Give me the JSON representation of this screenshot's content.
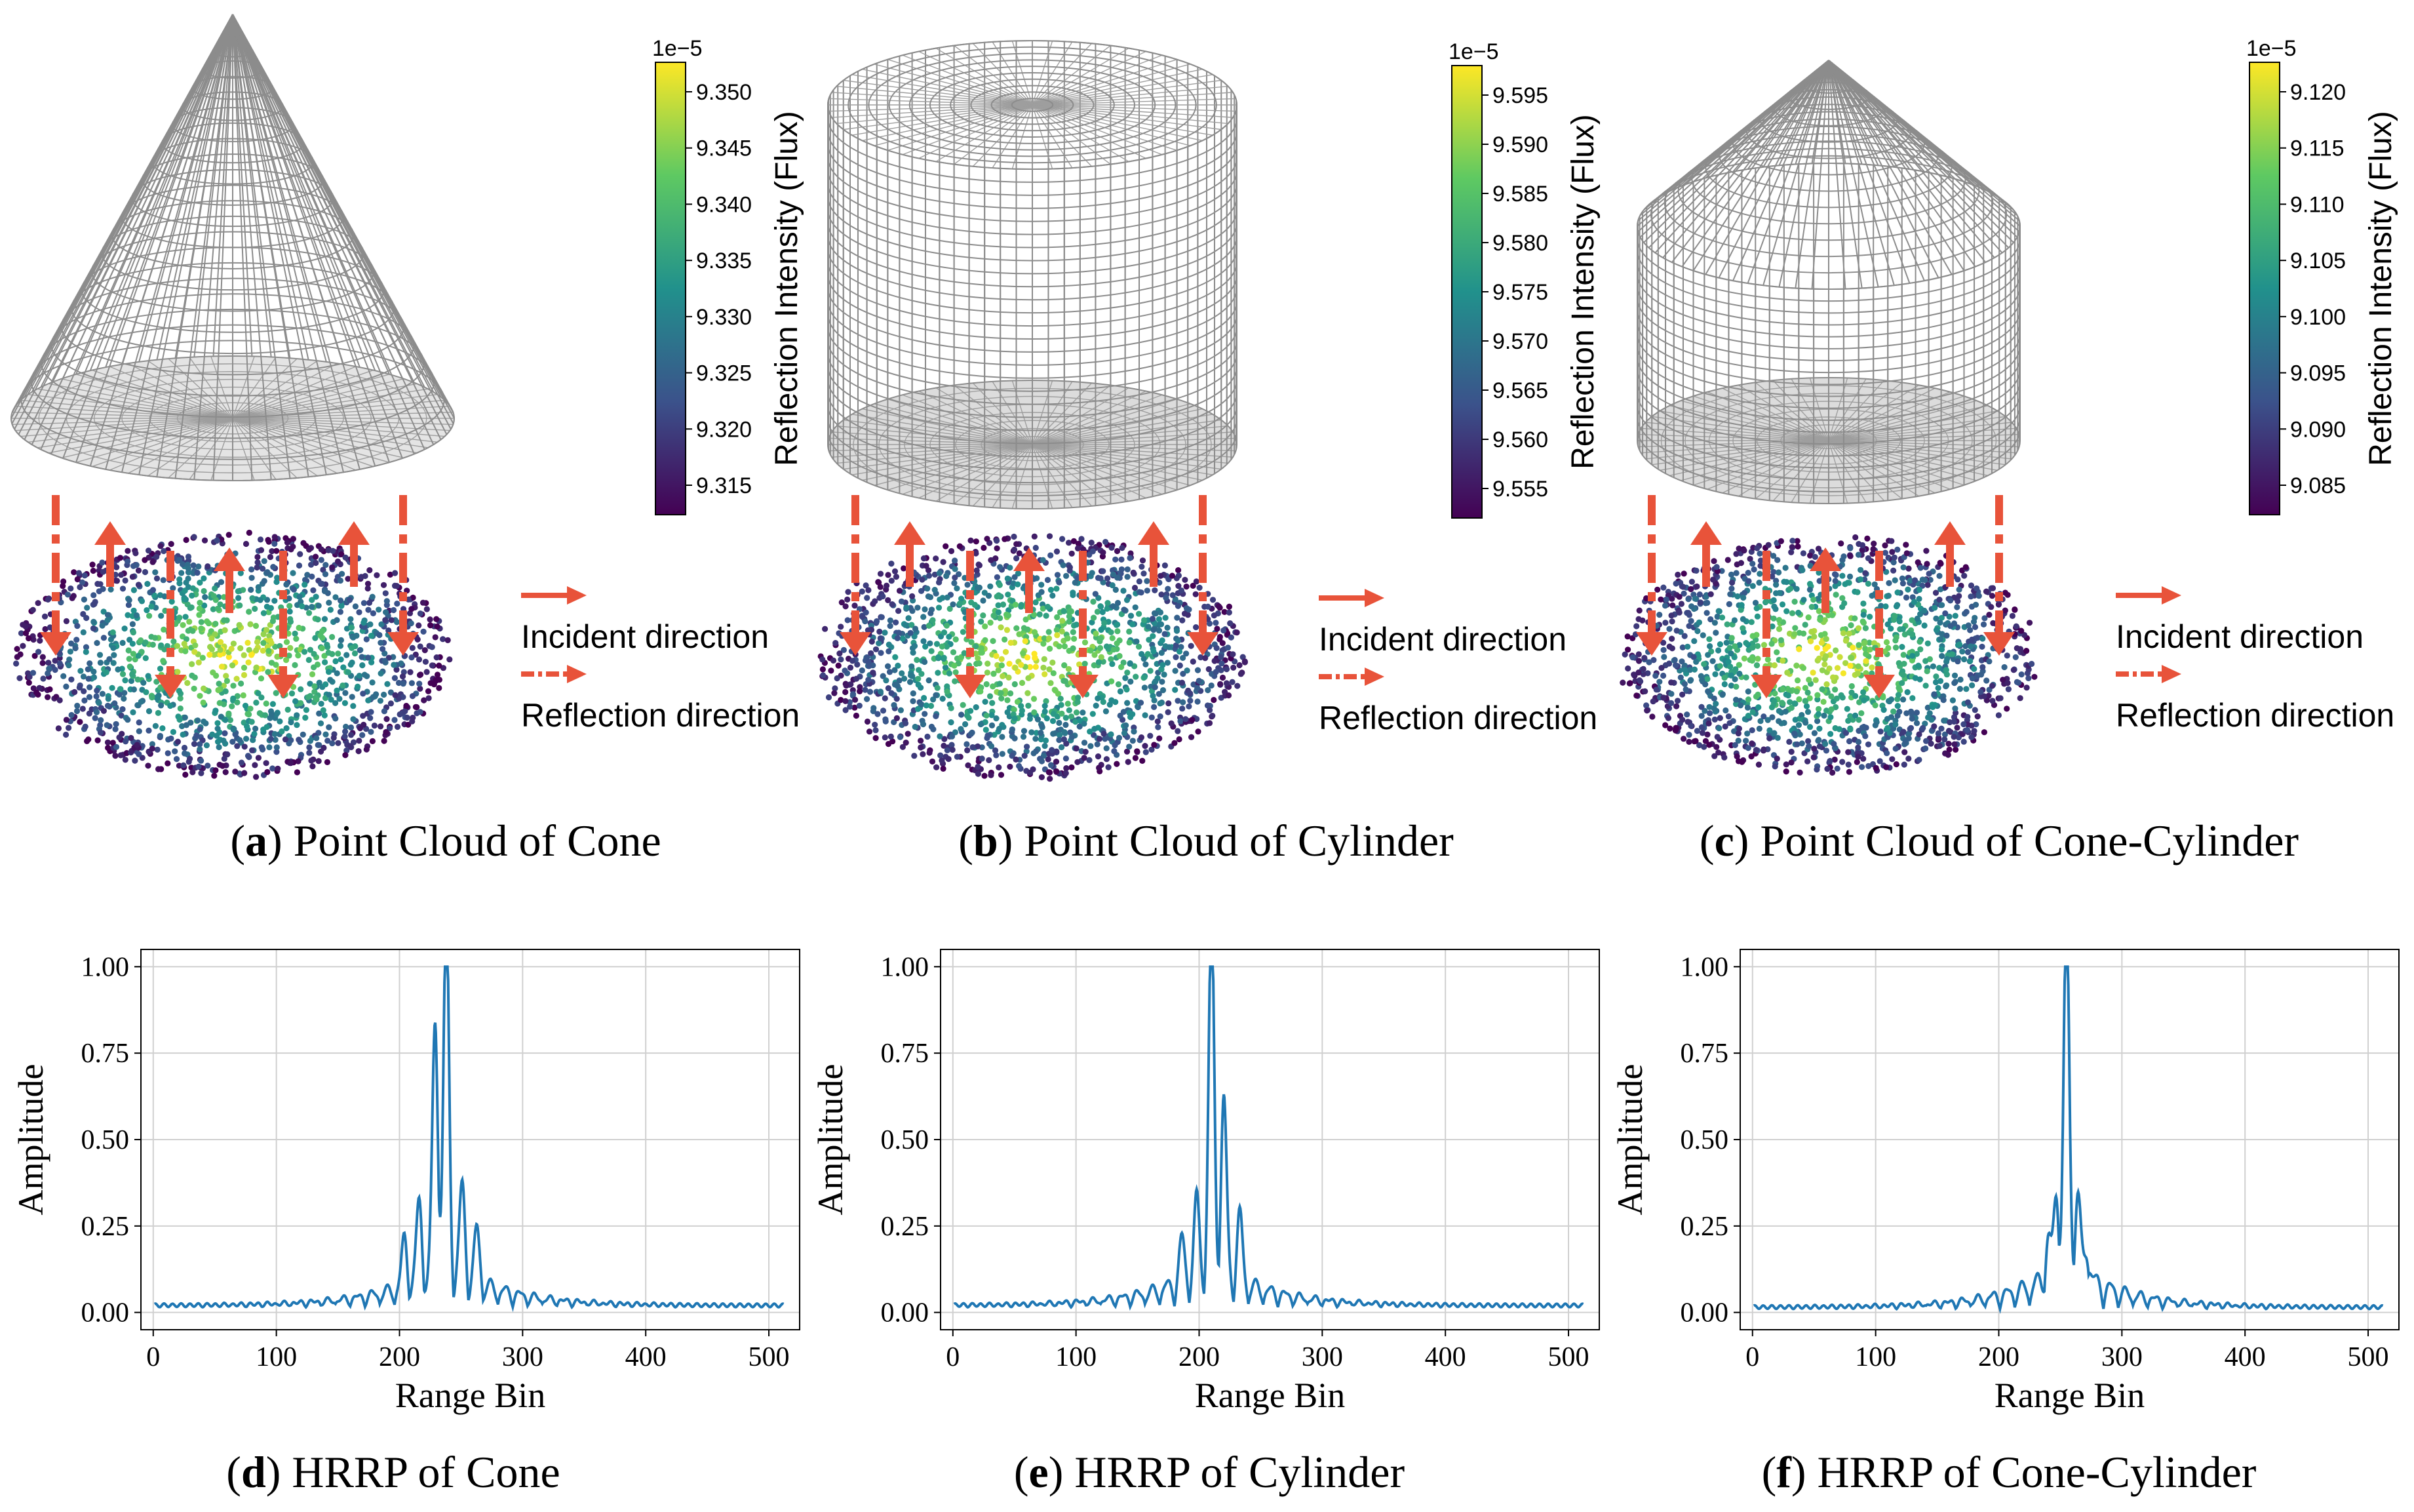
{
  "panels_top": [
    {
      "letter": "a",
      "caption": " Point Cloud of Cone",
      "shape": "cone",
      "colorbar": {
        "exponent": "1e−5",
        "ticks": [
          "9.350",
          "9.345",
          "9.340",
          "9.335",
          "9.330",
          "9.325",
          "9.320",
          "9.315"
        ],
        "label": "Reflection Intensity (Flux)"
      },
      "legend": {
        "incident": "Incident direction",
        "reflection": "Reflection direction"
      }
    },
    {
      "letter": "b",
      "caption": " Point Cloud of Cylinder",
      "shape": "cylinder",
      "colorbar": {
        "exponent": "1e−5",
        "ticks": [
          "9.595",
          "9.590",
          "9.585",
          "9.580",
          "9.575",
          "9.570",
          "9.565",
          "9.560",
          "9.555"
        ],
        "label": "Reflection Intensity (Flux)"
      },
      "legend": {
        "incident": "Incident direction",
        "reflection": "Reflection direction"
      }
    },
    {
      "letter": "c",
      "caption": " Point Cloud of Cone-Cylinder",
      "shape": "cone-cylinder",
      "colorbar": {
        "exponent": "1e−5",
        "ticks": [
          "9.120",
          "9.115",
          "9.110",
          "9.105",
          "9.100",
          "9.095",
          "9.090",
          "9.085"
        ],
        "label": "Reflection Intensity (Flux)"
      },
      "legend": {
        "incident": "Incident direction",
        "reflection": "Reflection direction"
      }
    }
  ],
  "colors": {
    "accent_arrow": "#e8533a",
    "line": "#1f77b4",
    "wireframe": "#8c8c8c",
    "viridis": [
      "#440154",
      "#3b528b",
      "#21918c",
      "#5ec962",
      "#fde725"
    ]
  },
  "chart_data": [
    {
      "type": "line",
      "letter": "d",
      "caption": " HRRP of Cone",
      "xlabel": "Range Bin",
      "ylabel": "Amplitude",
      "xlim": [
        -10,
        525
      ],
      "ylim": [
        -0.05,
        1.05
      ],
      "xticks": [
        0,
        100,
        200,
        300,
        400,
        500
      ],
      "yticks": [
        "0.00",
        "0.25",
        "0.50",
        "0.75",
        "1.00"
      ],
      "grid": true,
      "x_range": [
        1,
        512
      ],
      "base_level": 0.02,
      "peaks": [
        {
          "x": 238,
          "y": 1.0
        },
        {
          "x": 229,
          "y": 0.73
        },
        {
          "x": 216,
          "y": 0.23
        },
        {
          "x": 251,
          "y": 0.25
        },
        {
          "x": 204,
          "y": 0.14
        },
        {
          "x": 263,
          "y": 0.15
        }
      ]
    },
    {
      "type": "line",
      "letter": "e",
      "caption": " HRRP of Cylinder",
      "xlabel": "Range Bin",
      "ylabel": "Amplitude",
      "xlim": [
        -10,
        525
      ],
      "ylim": [
        -0.05,
        1.05
      ],
      "xticks": [
        0,
        100,
        200,
        300,
        400,
        500
      ],
      "yticks": [
        "0.00",
        "0.25",
        "0.50",
        "0.75",
        "1.00"
      ],
      "grid": true,
      "x_range": [
        1,
        512
      ],
      "base_level": 0.02,
      "peaks": [
        {
          "x": 210,
          "y": 1.0
        },
        {
          "x": 220,
          "y": 0.5
        },
        {
          "x": 198,
          "y": 0.21
        },
        {
          "x": 233,
          "y": 0.19
        },
        {
          "x": 186,
          "y": 0.12
        }
      ]
    },
    {
      "type": "line",
      "letter": "f",
      "caption": " HRRP of Cone-Cylinder",
      "xlabel": "Range Bin",
      "ylabel": "Amplitude",
      "xlim": [
        -10,
        525
      ],
      "ylim": [
        -0.05,
        1.05
      ],
      "xticks": [
        0,
        100,
        200,
        300,
        400,
        500
      ],
      "yticks": [
        "0.00",
        "0.25",
        "0.50",
        "0.75",
        "1.00"
      ],
      "grid": true,
      "x_range": [
        1,
        512
      ],
      "base_level": 0.015,
      "peaks": [
        {
          "x": 255,
          "y": 1.0
        },
        {
          "x": 247,
          "y": 0.24
        },
        {
          "x": 264,
          "y": 0.24
        },
        {
          "x": 240,
          "y": 0.12
        },
        {
          "x": 272,
          "y": 0.1
        }
      ]
    }
  ]
}
